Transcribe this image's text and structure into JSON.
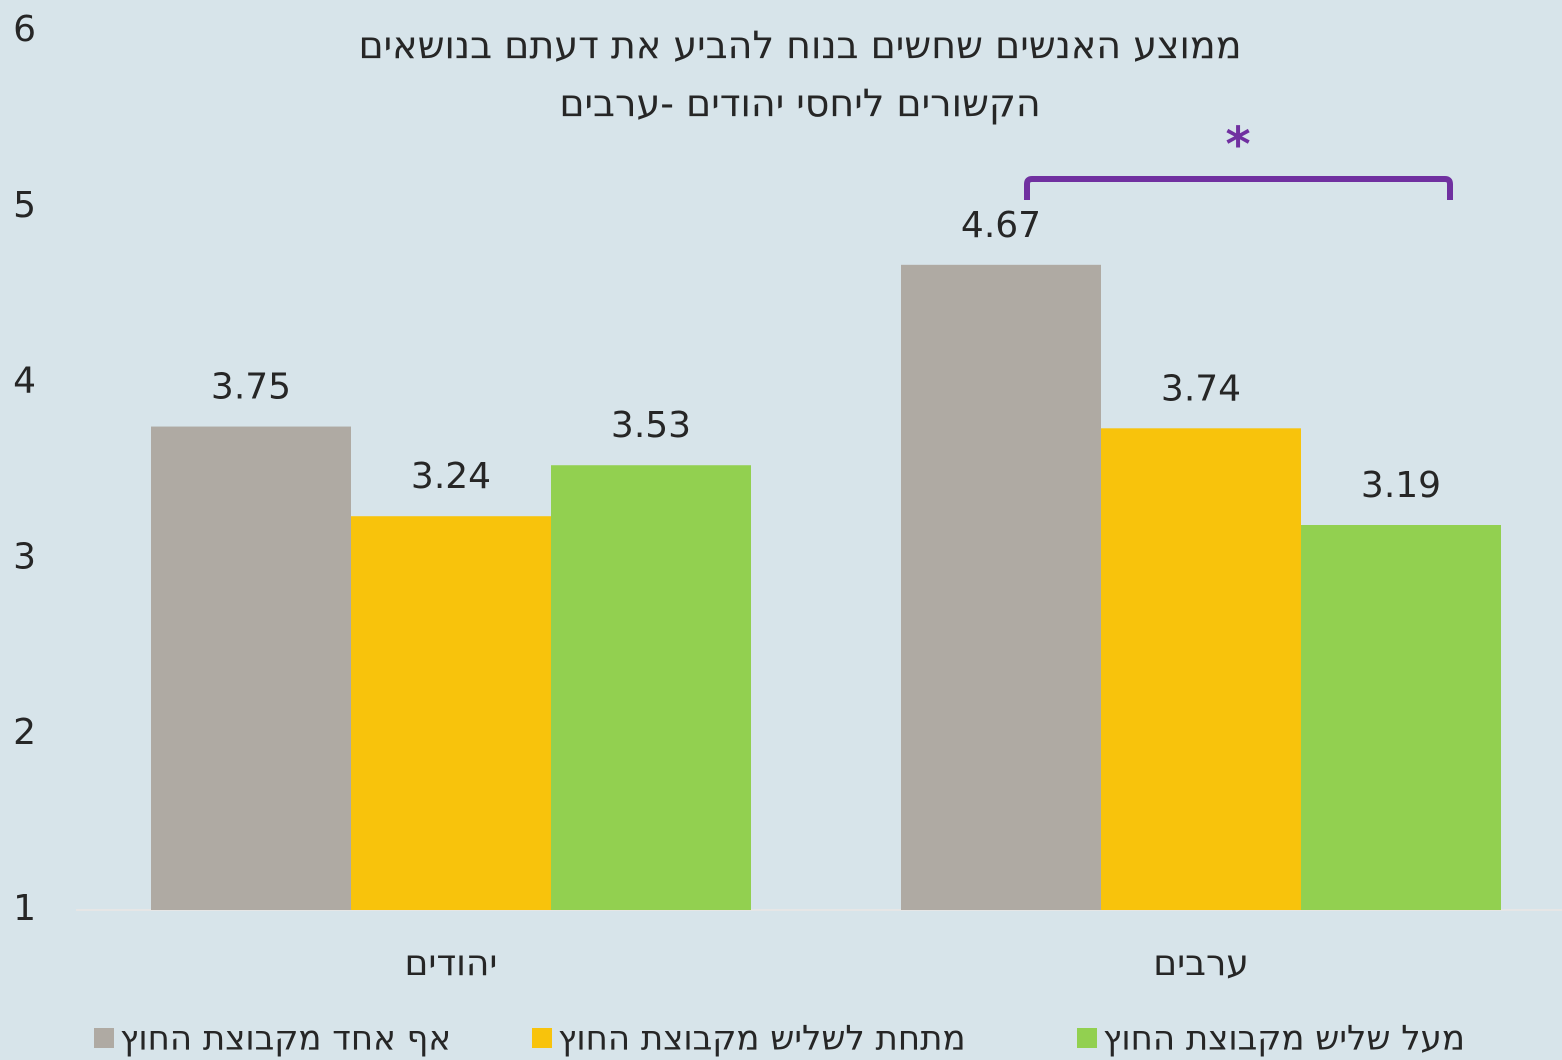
{
  "chart_data": {
    "type": "bar",
    "title": [
      "ממוצע האנשים שחשים בנוח להביע את דעתם בנושאים",
      "הקשורים ליחסי יהודים -ערבים"
    ],
    "categories": [
      "יהודים",
      "ערבים"
    ],
    "series": [
      {
        "name": "אף אחד מקבוצת  החוץ",
        "color": "#afaaa3",
        "values": [
          3.75,
          4.67
        ]
      },
      {
        "name": "מתחת לשליש  מקבוצת החוץ",
        "color": "#f8c30c",
        "values": [
          3.24,
          3.74
        ]
      },
      {
        "name": "מעל שליש מקבוצת החוץ",
        "color": "#92d050",
        "values": [
          3.53,
          3.19
        ]
      }
    ],
    "annotation": "*",
    "ylim": [
      1,
      6
    ],
    "yticks": [
      1,
      2,
      3,
      4,
      5,
      6
    ],
    "grid": false,
    "legend": "bottom"
  }
}
